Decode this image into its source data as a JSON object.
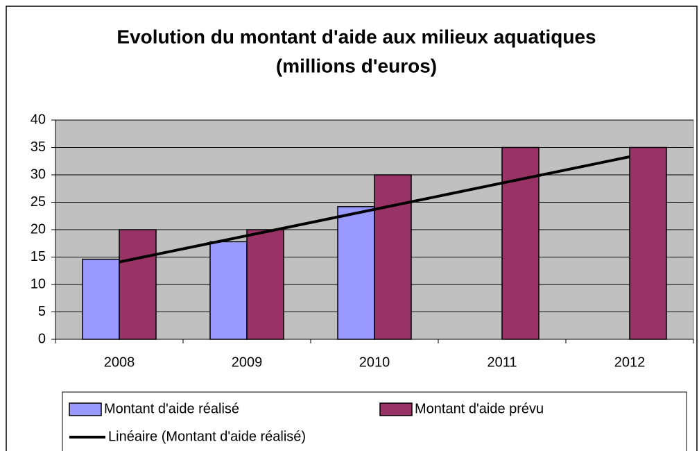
{
  "chart_data": {
    "type": "bar",
    "title": [
      "Evolution du montant d'aide aux milieux aquatiques",
      "(millions d'euros)"
    ],
    "categories": [
      "2008",
      "2009",
      "2010",
      "2011",
      "2012"
    ],
    "series": [
      {
        "name": "Montant d'aide réalisé",
        "color": "#9999ff",
        "values": [
          14.6,
          17.8,
          24.2,
          null,
          null
        ]
      },
      {
        "name": "Montant d'aide prévu",
        "color": "#993366",
        "values": [
          20,
          20,
          30,
          35,
          35
        ]
      },
      {
        "name": "Linéaire (Montant d'aide réalisé)",
        "color": "#000000",
        "type": "line",
        "values": [
          14.1,
          18.9,
          23.7,
          28.5,
          33.3
        ]
      }
    ],
    "ylim": [
      0,
      40
    ],
    "yticks": [
      0,
      5,
      10,
      15,
      20,
      25,
      30,
      35,
      40
    ],
    "grid": true,
    "legend": "bottom"
  }
}
